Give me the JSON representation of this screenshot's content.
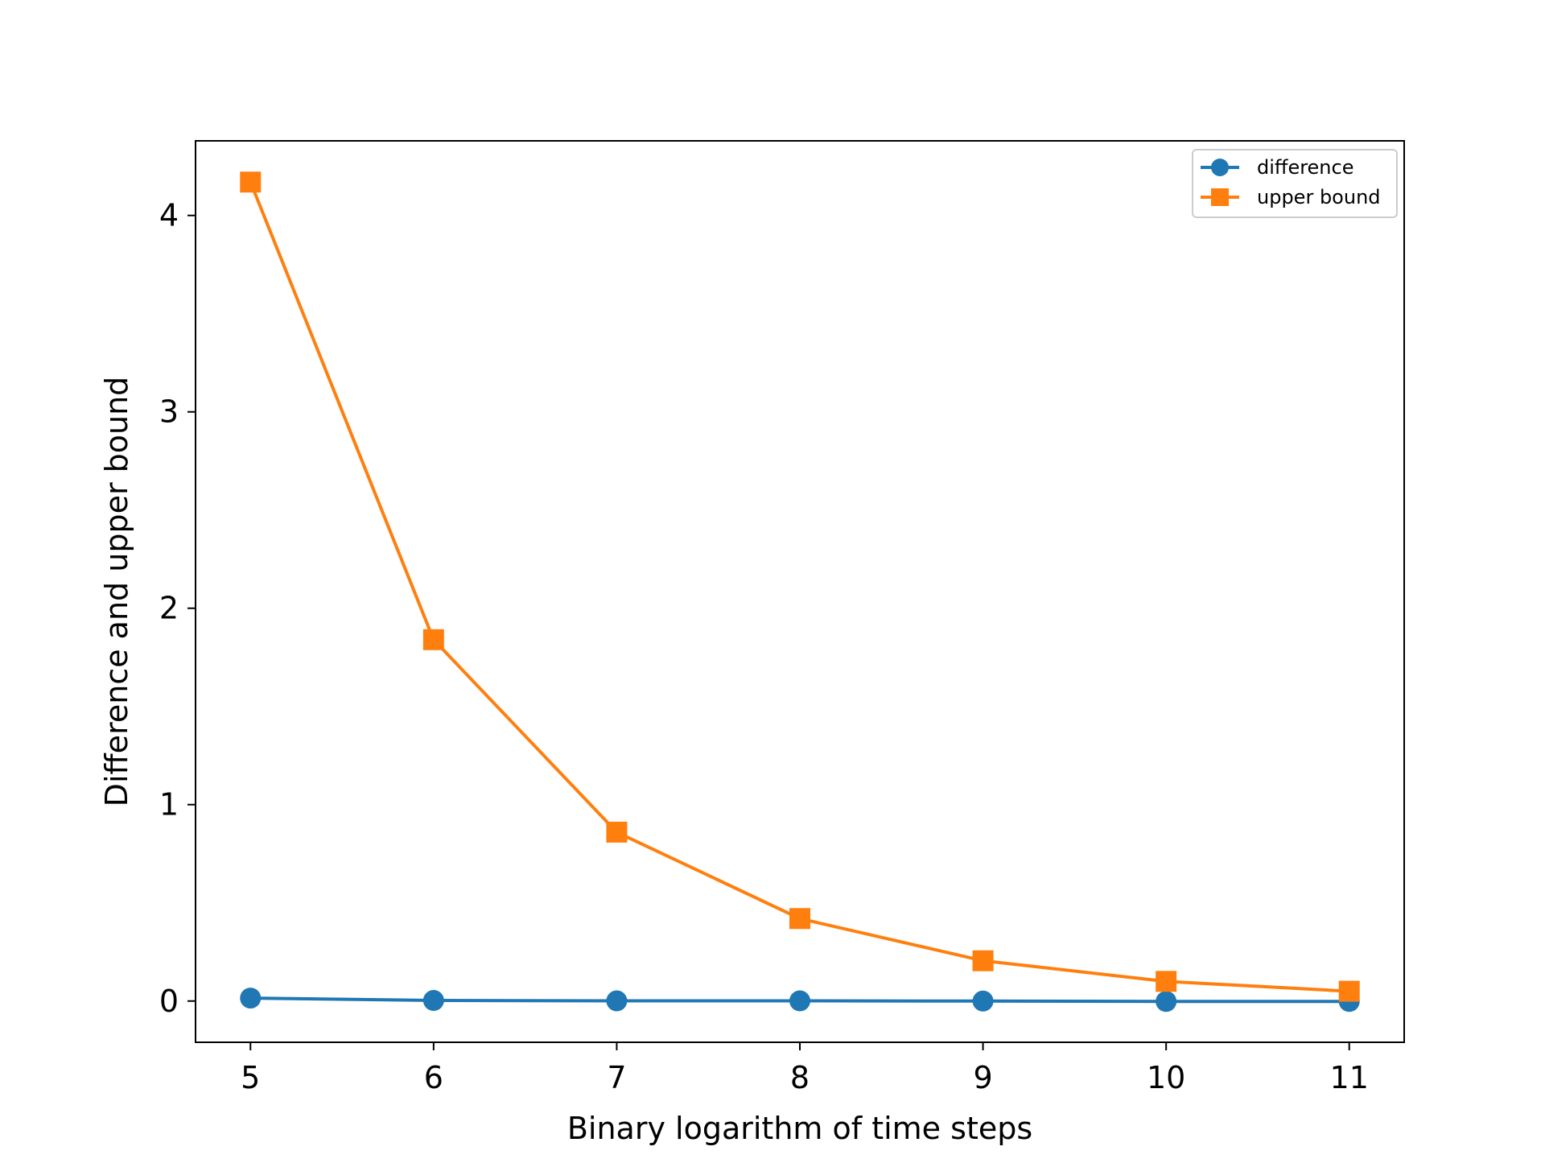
{
  "chart_data": {
    "type": "line",
    "title": "",
    "xlabel": "Binary logarithm of time steps",
    "ylabel": "Difference and upper bound",
    "x": [
      5,
      6,
      7,
      8,
      9,
      10,
      11
    ],
    "xticks": [
      "5",
      "6",
      "7",
      "8",
      "9",
      "10",
      "11"
    ],
    "yticks": [
      "0",
      "1",
      "2",
      "3",
      "4"
    ],
    "xlim": [
      4.7,
      11.3
    ],
    "ylim": [
      -0.21,
      4.38
    ],
    "grid": false,
    "legend_position": "top-right",
    "series": [
      {
        "name": "difference",
        "color": "#1f77b4",
        "marker": "circle",
        "values": [
          0.015,
          0.003,
          0.001,
          0.001,
          0.0,
          -0.002,
          -0.002
        ]
      },
      {
        "name": "upper bound",
        "color": "#ff7f0e",
        "marker": "square",
        "values": [
          4.17,
          1.84,
          0.86,
          0.42,
          0.205,
          0.1,
          0.05
        ]
      }
    ]
  }
}
